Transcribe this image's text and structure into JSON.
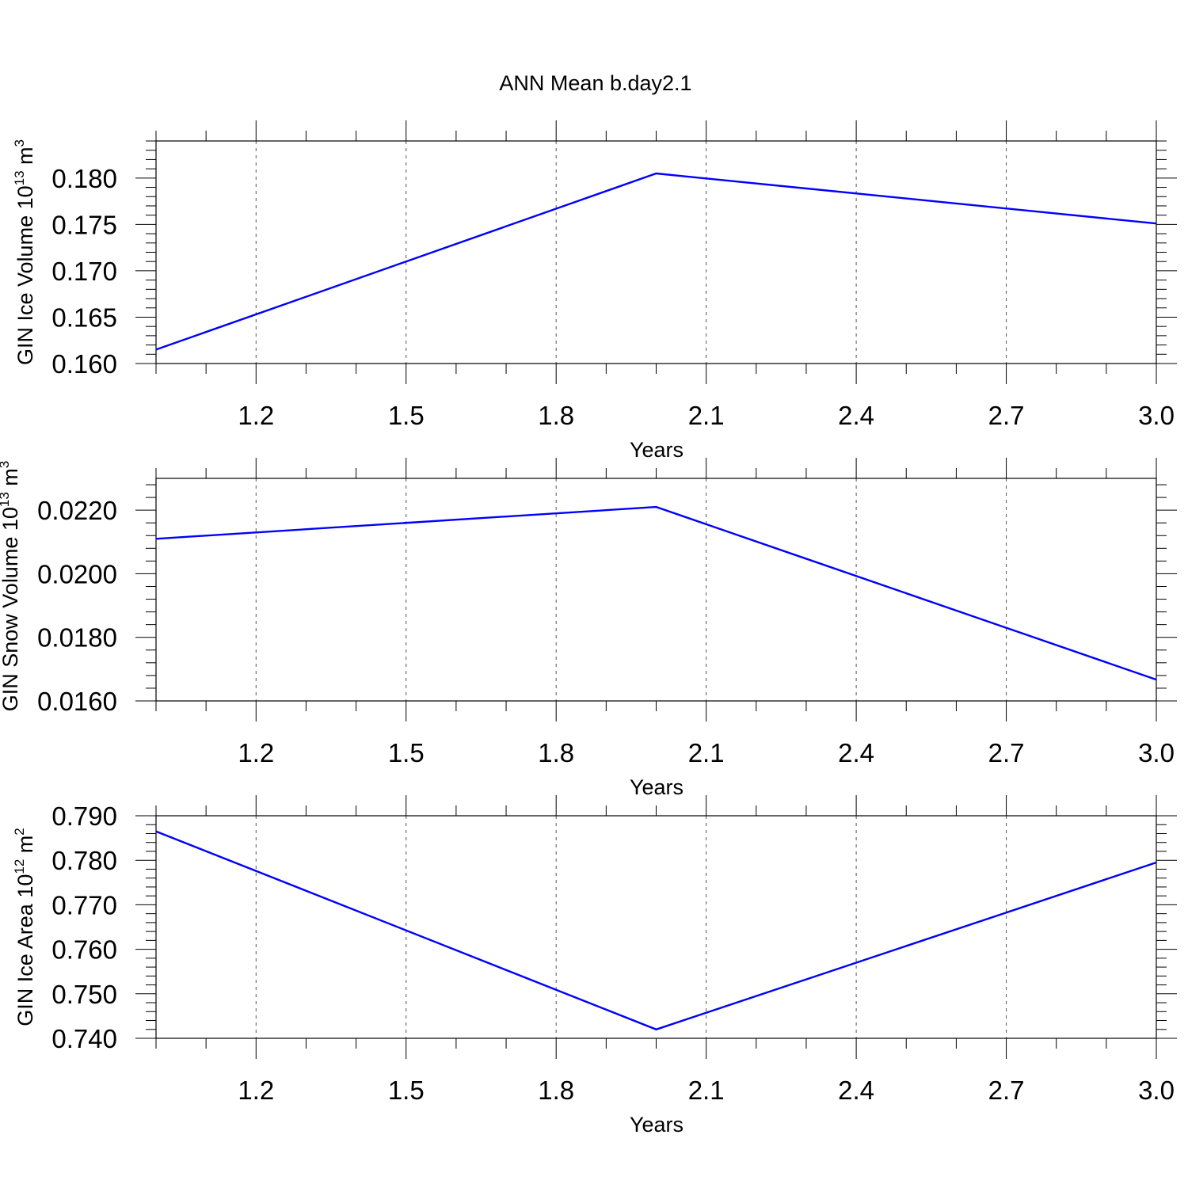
{
  "title": "ANN Mean b.day2.1",
  "line_color": "#0000ff",
  "chart_data": [
    {
      "type": "line",
      "ylabel": {
        "prefix": "GIN Ice Volume 10",
        "exp": "13",
        "unit": " m",
        "unit_exp": "3"
      },
      "xlabel": "Years",
      "xlim": [
        1.0,
        3.0
      ],
      "x_ticks": [
        "1.2",
        "1.5",
        "1.8",
        "2.1",
        "2.4",
        "2.7",
        "3.0"
      ],
      "ylim": [
        0.16,
        0.184
      ],
      "y_ticks": [
        "0.160",
        "0.165",
        "0.170",
        "0.175",
        "0.180"
      ],
      "x": [
        1,
        2,
        3
      ],
      "values": [
        0.1615,
        0.1805,
        0.1751
      ],
      "grid": "vertical dashed"
    },
    {
      "type": "line",
      "ylabel": {
        "prefix": "GIN Snow Volume 10",
        "exp": "13",
        "unit": " m",
        "unit_exp": "3"
      },
      "xlabel": "Years",
      "xlim": [
        1.0,
        3.0
      ],
      "x_ticks": [
        "1.2",
        "1.5",
        "1.8",
        "2.1",
        "2.4",
        "2.7",
        "3.0"
      ],
      "ylim": [
        0.016,
        0.023
      ],
      "y_ticks": [
        "0.0160",
        "0.0180",
        "0.0200",
        "0.0220"
      ],
      "x": [
        1,
        2,
        3
      ],
      "values": [
        0.0211,
        0.0221,
        0.01667
      ],
      "grid": "vertical dashed"
    },
    {
      "type": "line",
      "ylabel": {
        "prefix": "GIN Ice Area 10",
        "exp": "12",
        "unit": " m",
        "unit_exp": "2"
      },
      "xlabel": "Years",
      "xlim": [
        1.0,
        3.0
      ],
      "x_ticks": [
        "1.2",
        "1.5",
        "1.8",
        "2.1",
        "2.4",
        "2.7",
        "3.0"
      ],
      "ylim": [
        0.74,
        0.79
      ],
      "y_ticks": [
        "0.740",
        "0.750",
        "0.760",
        "0.770",
        "0.780",
        "0.790"
      ],
      "x": [
        1,
        2,
        3
      ],
      "values": [
        0.7865,
        0.742,
        0.7795
      ],
      "grid": "vertical dashed"
    }
  ]
}
